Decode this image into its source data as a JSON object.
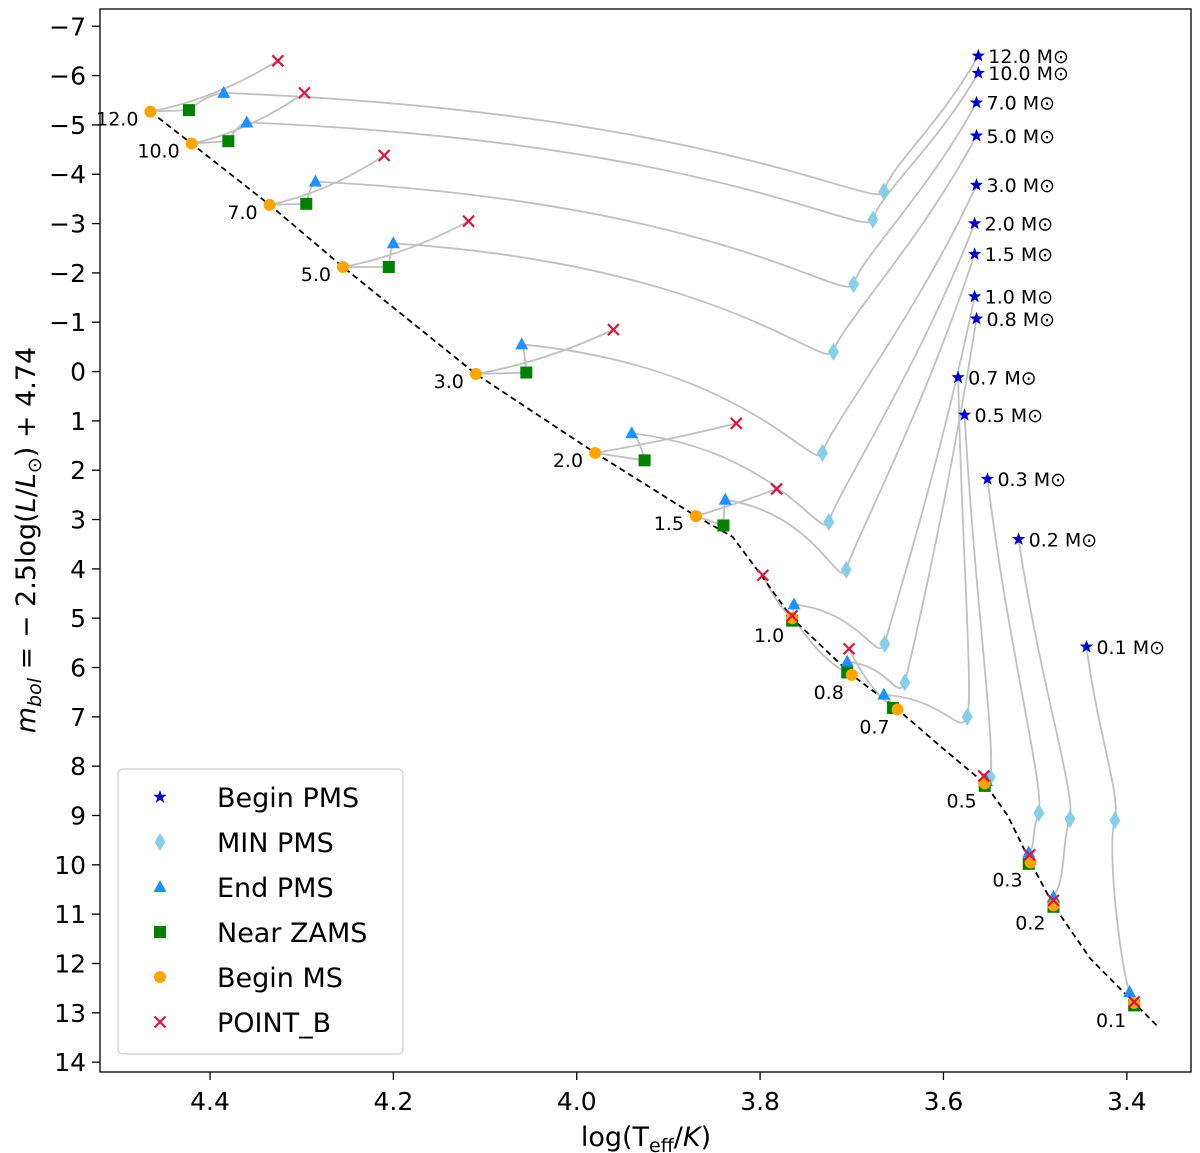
{
  "chart_data": {
    "type": "scatter",
    "title": "",
    "xlabel": "log(T_eff/K)",
    "ylabel": "m_bol = −2.5log(L/L⊙) + 4.74",
    "xlim": [
      4.52,
      3.33
    ],
    "ylim": [
      14.2,
      -7.35
    ],
    "x_ticks": [
      4.4,
      4.2,
      4.0,
      3.8,
      3.6,
      3.4
    ],
    "x_tick_labels": [
      "4.4",
      "4.2",
      "4.0",
      "3.8",
      "3.6",
      "3.4"
    ],
    "y_ticks": [
      -7,
      -6,
      -5,
      -4,
      -3,
      -2,
      -1,
      0,
      1,
      2,
      3,
      4,
      5,
      6,
      7,
      8,
      9,
      10,
      11,
      12,
      13,
      14
    ],
    "y_tick_labels": [
      "−7",
      "−6",
      "−5",
      "−4",
      "−3",
      "−2",
      "−1",
      "0",
      "1",
      "2",
      "3",
      "4",
      "5",
      "6",
      "7",
      "8",
      "9",
      "10",
      "11",
      "12",
      "13",
      "14"
    ],
    "grid": false,
    "legend_position": "lower-left",
    "colors": {
      "begin_pms": "#0000cd",
      "min_pms": "#87ceeb",
      "end_pms": "#1e90ff",
      "near_zams": "#008000",
      "begin_ms": "#ffa500",
      "point_b": "#dc143c",
      "track": "#c0c0c0",
      "zams": "#000000"
    },
    "legend": [
      {
        "key": "begin_pms",
        "marker": "star",
        "label": "Begin PMS"
      },
      {
        "key": "min_pms",
        "marker": "diamond",
        "label": "MIN PMS"
      },
      {
        "key": "end_pms",
        "marker": "triangle",
        "label": "End PMS"
      },
      {
        "key": "near_zams",
        "marker": "square",
        "label": "Near ZAMS"
      },
      {
        "key": "begin_ms",
        "marker": "circle",
        "label": "Begin MS"
      },
      {
        "key": "point_b",
        "marker": "x",
        "label": "POINT_B"
      }
    ],
    "zams_line": [
      [
        4.465,
        -5.27
      ],
      [
        4.42,
        -4.62
      ],
      [
        4.335,
        -3.38
      ],
      [
        4.255,
        -2.12
      ],
      [
        4.11,
        0.05
      ],
      [
        3.98,
        1.65
      ],
      [
        3.87,
        2.93
      ],
      [
        3.83,
        3.35
      ],
      [
        3.8,
        4.1
      ],
      [
        3.765,
        5.0
      ],
      [
        3.7,
        6.15
      ],
      [
        3.65,
        6.85
      ],
      [
        3.6,
        7.65
      ],
      [
        3.555,
        8.35
      ],
      [
        3.53,
        9.0
      ],
      [
        3.505,
        9.95
      ],
      [
        3.48,
        10.82
      ],
      [
        3.44,
        11.9
      ],
      [
        3.392,
        12.8
      ],
      [
        3.365,
        13.3
      ]
    ],
    "tracks": [
      {
        "mass": "12.0",
        "label": "12.0 M⊙",
        "zams_label": "12.0",
        "begin_pms": [
          3.562,
          -6.4
        ],
        "min_pms": [
          3.665,
          -3.65
        ],
        "end_pms": [
          4.385,
          -5.65
        ],
        "near_zams": [
          4.423,
          -5.3
        ],
        "begin_ms": [
          4.465,
          -5.27
        ],
        "point_b": [
          4.326,
          -6.3
        ]
      },
      {
        "mass": "10.0",
        "label": "10.0 M⊙",
        "zams_label": "10.0",
        "begin_pms": [
          3.562,
          -6.05
        ],
        "min_pms": [
          3.677,
          -3.08
        ],
        "end_pms": [
          4.36,
          -5.05
        ],
        "near_zams": [
          4.38,
          -4.67
        ],
        "begin_ms": [
          4.42,
          -4.62
        ],
        "point_b": [
          4.297,
          -5.65
        ]
      },
      {
        "mass": "7.0",
        "label": "7.0 M⊙",
        "zams_label": "7.0",
        "begin_pms": [
          3.564,
          -5.45
        ],
        "min_pms": [
          3.698,
          -1.77
        ],
        "end_pms": [
          4.285,
          -3.85
        ],
        "near_zams": [
          4.295,
          -3.4
        ],
        "begin_ms": [
          4.335,
          -3.38
        ],
        "point_b": [
          4.21,
          -4.38
        ]
      },
      {
        "mass": "5.0",
        "label": "5.0 M⊙",
        "zams_label": "5.0",
        "begin_pms": [
          3.564,
          -4.78
        ],
        "min_pms": [
          3.72,
          -0.4
        ],
        "end_pms": [
          4.2,
          -2.6
        ],
        "near_zams": [
          4.205,
          -2.12
        ],
        "begin_ms": [
          4.255,
          -2.12
        ],
        "point_b": [
          4.118,
          -3.05
        ]
      },
      {
        "mass": "3.0",
        "label": "3.0 M⊙",
        "zams_label": "3.0",
        "begin_pms": [
          3.564,
          -3.78
        ],
        "min_pms": [
          3.732,
          1.65
        ],
        "end_pms": [
          4.06,
          -0.55
        ],
        "near_zams": [
          4.055,
          0.02
        ],
        "begin_ms": [
          4.11,
          0.05
        ],
        "point_b": [
          3.96,
          -0.85
        ]
      },
      {
        "mass": "2.0",
        "label": "2.0 M⊙",
        "zams_label": "2.0",
        "begin_pms": [
          3.566,
          -3.0
        ],
        "min_pms": [
          3.725,
          3.05
        ],
        "end_pms": [
          3.94,
          1.25
        ],
        "near_zams": [
          3.926,
          1.8
        ],
        "begin_ms": [
          3.98,
          1.65
        ],
        "point_b": [
          3.826,
          1.05
        ]
      },
      {
        "mass": "1.5",
        "label": "1.5 M⊙",
        "zams_label": "1.5",
        "begin_pms": [
          3.566,
          -2.38
        ],
        "min_pms": [
          3.706,
          4.02
        ],
        "end_pms": [
          3.838,
          2.6
        ],
        "near_zams": [
          3.84,
          3.12
        ],
        "begin_ms": [
          3.87,
          2.93
        ],
        "point_b": [
          3.782,
          2.38
        ]
      },
      {
        "mass": "1.0",
        "label": "1.0 M⊙",
        "zams_label": "1.0",
        "begin_pms": [
          3.566,
          -1.52
        ],
        "min_pms": [
          3.664,
          5.52
        ],
        "end_pms": [
          3.763,
          4.72
        ],
        "near_zams": [
          3.765,
          5.05
        ],
        "begin_ms": [
          3.765,
          5.0
        ],
        "point_b": [
          3.797,
          4.13
        ]
      },
      {
        "mass": "0.8",
        "label": "0.8 M⊙",
        "zams_label": "0.8",
        "begin_pms": [
          3.564,
          -1.07
        ],
        "min_pms": [
          3.642,
          6.3
        ],
        "end_pms": [
          3.705,
          5.88
        ],
        "near_zams": [
          3.705,
          6.1
        ],
        "begin_ms": [
          3.7,
          6.15
        ],
        "point_b": [
          3.765,
          4.95
        ]
      },
      {
        "mass": "0.7",
        "label": "0.7 M⊙",
        "zams_label": "0.7",
        "begin_pms": [
          3.584,
          0.12
        ],
        "min_pms": [
          3.574,
          7.0
        ],
        "end_pms": [
          3.665,
          6.55
        ],
        "near_zams": [
          3.655,
          6.82
        ],
        "begin_ms": [
          3.65,
          6.85
        ],
        "point_b": [
          3.703,
          5.62
        ]
      },
      {
        "mass": "0.5",
        "label": "0.5 M⊙",
        "zams_label": "0.5",
        "begin_pms": [
          3.577,
          0.88
        ],
        "min_pms": [
          3.549,
          8.22
        ],
        "end_pms": [
          3.553,
          8.3
        ],
        "near_zams": [
          3.555,
          8.4
        ],
        "begin_ms": [
          3.555,
          8.35
        ],
        "point_b": [
          3.556,
          8.2
        ]
      },
      {
        "mass": "0.3",
        "label": "0.3 M⊙",
        "zams_label": "0.3",
        "begin_pms": [
          3.552,
          2.18
        ],
        "min_pms": [
          3.496,
          8.95
        ],
        "end_pms": [
          3.507,
          9.75
        ],
        "near_zams": [
          3.507,
          9.98
        ],
        "begin_ms": [
          3.505,
          9.95
        ],
        "point_b": [
          3.506,
          9.8
        ]
      },
      {
        "mass": "0.2",
        "label": "0.2 M⊙",
        "zams_label": "0.2",
        "begin_pms": [
          3.518,
          3.4
        ],
        "min_pms": [
          3.462,
          9.07
        ],
        "end_pms": [
          3.48,
          10.65
        ],
        "near_zams": [
          3.48,
          10.85
        ],
        "begin_ms": [
          3.48,
          10.82
        ],
        "point_b": [
          3.48,
          10.72
        ]
      },
      {
        "mass": "0.1",
        "label": "0.1 M⊙",
        "zams_label": "0.1",
        "begin_pms": [
          3.444,
          5.58
        ],
        "min_pms": [
          3.413,
          9.1
        ],
        "end_pms": [
          3.397,
          12.58
        ],
        "near_zams": [
          3.392,
          12.85
        ],
        "begin_ms": [
          3.392,
          12.8
        ],
        "point_b": [
          3.392,
          12.78
        ]
      }
    ]
  }
}
